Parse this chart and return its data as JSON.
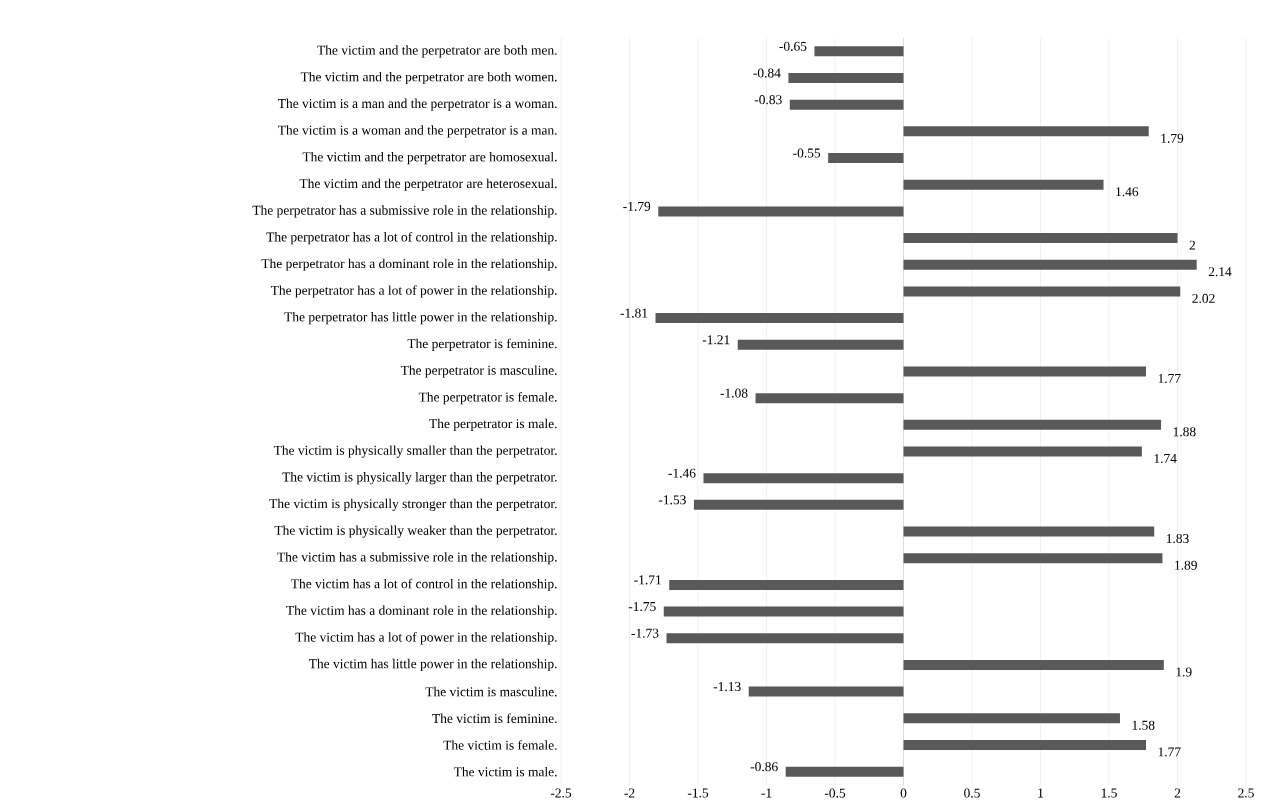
{
  "chart_data": {
    "type": "bar",
    "orientation": "horizontal",
    "categories": [
      "The victim and the perpetrator are both men.",
      "The victim and the perpetrator are both women.",
      "The victim is a man and the perpetrator is a woman.",
      "The victim is a woman and the perpetrator is a man.",
      "The victim and the perpetrator are homosexual.",
      "The victim and the perpetrator are heterosexual.",
      "The perpetrator has a submissive role in the relationship.",
      "The perpetrator has a lot of control in the relationship.",
      "The perpetrator has a dominant role in the relationship.",
      "The perpetrator has a lot of power in the relationship.",
      "The perpetrator has little power in the relationship.",
      "The perpetrator is feminine.",
      "The perpetrator is masculine.",
      "The perpetrator is female.",
      "The perpetrator is male.",
      "The victim is physically smaller than the perpetrator.",
      "The victim is physically larger than the perpetrator.",
      "The victim is physically stronger than the perpetrator.",
      "The victim is physically weaker than the perpetrator.",
      "The victim has a submissive role in the relationship.",
      "The victim has a lot of control in the relationship.",
      "The victim has a dominant role in the relationship.",
      "The victim has a lot of power in the relationship.",
      "The victim has little power in the relationship.",
      "The victim is masculine.",
      "The victim is feminine.",
      "The victim is female.",
      "The victim is male."
    ],
    "values": [
      -0.65,
      -0.84,
      -0.83,
      1.79,
      -0.55,
      1.46,
      -1.79,
      2,
      2.14,
      2.02,
      -1.81,
      -1.21,
      1.77,
      -1.08,
      1.88,
      1.74,
      -1.46,
      -1.53,
      1.83,
      1.89,
      -1.71,
      -1.75,
      -1.73,
      1.9,
      -1.13,
      1.58,
      1.77,
      -0.86
    ],
    "color": "#595959",
    "xlim": [
      -2.5,
      2.5
    ],
    "xticks": [
      -2.5,
      -2,
      -1.5,
      -1,
      -0.5,
      0,
      0.5,
      1,
      1.5,
      2,
      2.5
    ],
    "grid": "x",
    "data_labels": true
  }
}
